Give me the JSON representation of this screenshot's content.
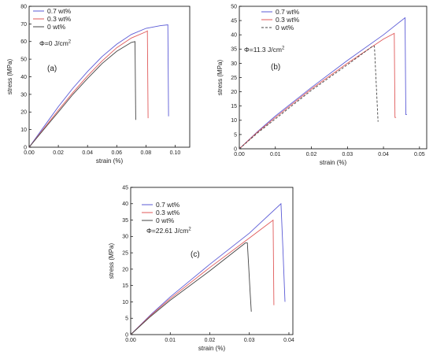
{
  "chart_data": [
    {
      "type": "line",
      "panel": "(a)",
      "annotation": "Φ=0 J/cm",
      "annotation_sup": "2",
      "xlabel": "strain (%)",
      "ylabel": "stress (MPa)",
      "xlim": [
        0,
        0.11
      ],
      "ylim": [
        0,
        80
      ],
      "xticks": [
        0.0,
        0.02,
        0.04,
        0.06,
        0.08,
        0.1
      ],
      "xtick_labels": [
        "0.00",
        "0.02",
        "0.04",
        "0.06",
        "0.08",
        "0.10"
      ],
      "yticks": [
        0,
        10,
        20,
        30,
        40,
        50,
        60,
        70,
        80
      ],
      "ytick_labels": [
        "0",
        "10",
        "20",
        "30",
        "40",
        "50",
        "60",
        "70",
        "80"
      ],
      "legend_position": "top-left",
      "series": [
        {
          "name": "0.7 wt%",
          "color": "#5b5bd6",
          "dash": "none",
          "points": [
            [
              0,
              0
            ],
            [
              0.01,
              11.5
            ],
            [
              0.02,
              23
            ],
            [
              0.03,
              33.5
            ],
            [
              0.04,
              43
            ],
            [
              0.05,
              51.5
            ],
            [
              0.06,
              58.5
            ],
            [
              0.07,
              64
            ],
            [
              0.08,
              67.5
            ],
            [
              0.09,
              69
            ],
            [
              0.095,
              69.5
            ],
            [
              0.0955,
              17.5
            ]
          ]
        },
        {
          "name": "0.3 wt%",
          "color": "#e05a5a",
          "dash": "none",
          "points": [
            [
              0,
              0
            ],
            [
              0.01,
              10.5
            ],
            [
              0.02,
              21
            ],
            [
              0.03,
              31
            ],
            [
              0.04,
              40.5
            ],
            [
              0.05,
              49
            ],
            [
              0.06,
              56.5
            ],
            [
              0.07,
              62
            ],
            [
              0.08,
              65.5
            ],
            [
              0.081,
              66
            ],
            [
              0.0815,
              16.5
            ]
          ]
        },
        {
          "name": "0 wt%",
          "color": "#444444",
          "dash": "none",
          "points": [
            [
              0,
              0
            ],
            [
              0.01,
              10
            ],
            [
              0.02,
              20
            ],
            [
              0.03,
              30
            ],
            [
              0.04,
              39
            ],
            [
              0.05,
              47.5
            ],
            [
              0.06,
              54.5
            ],
            [
              0.07,
              59.5
            ],
            [
              0.0725,
              60
            ],
            [
              0.073,
              15.5
            ]
          ]
        }
      ]
    },
    {
      "type": "line",
      "panel": "(b)",
      "annotation": "Φ=11.3 J/cm",
      "annotation_sup": "2",
      "xlabel": "strain (%)",
      "ylabel": "stress (MPa)",
      "xlim": [
        0,
        0.052
      ],
      "ylim": [
        0,
        50
      ],
      "xticks": [
        0.0,
        0.01,
        0.02,
        0.03,
        0.04,
        0.05
      ],
      "xtick_labels": [
        "0.00",
        "0.01",
        "0.02",
        "0.03",
        "0.04",
        "0.05"
      ],
      "yticks": [
        0,
        5,
        10,
        15,
        20,
        25,
        30,
        35,
        40,
        45,
        50
      ],
      "ytick_labels": [
        "0",
        "5",
        "10",
        "15",
        "20",
        "25",
        "30",
        "35",
        "40",
        "45",
        "50"
      ],
      "legend_position": "top-left",
      "series": [
        {
          "name": "0.7 wt%",
          "color": "#5b5bd6",
          "dash": "none",
          "points": [
            [
              0,
              0
            ],
            [
              0.005,
              6
            ],
            [
              0.01,
              11.5
            ],
            [
              0.02,
              21.5
            ],
            [
              0.03,
              31
            ],
            [
              0.04,
              40
            ],
            [
              0.046,
              46
            ],
            [
              0.0462,
              12
            ],
            [
              0.0465,
              12
            ]
          ]
        },
        {
          "name": "0.3 wt%",
          "color": "#e05a5a",
          "dash": "none",
          "points": [
            [
              0,
              0
            ],
            [
              0.005,
              5.8
            ],
            [
              0.01,
              11
            ],
            [
              0.02,
              21
            ],
            [
              0.03,
              30
            ],
            [
              0.04,
              38.5
            ],
            [
              0.043,
              40.5
            ],
            [
              0.0432,
              11
            ],
            [
              0.0435,
              11
            ]
          ]
        },
        {
          "name": "0 wt%",
          "color": "#444444",
          "dash": "3,2",
          "points": [
            [
              0,
              0
            ],
            [
              0.005,
              5.5
            ],
            [
              0.01,
              10.5
            ],
            [
              0.02,
              20.5
            ],
            [
              0.03,
              29.5
            ],
            [
              0.037,
              36
            ],
            [
              0.0375,
              36
            ],
            [
              0.0385,
              9.5
            ]
          ]
        }
      ]
    },
    {
      "type": "line",
      "panel": "(c)",
      "annotation": "Φ=22.61 J/cm",
      "annotation_sup": "2",
      "xlabel": "strain (%)",
      "ylabel": "stress (MPa)",
      "xlim": [
        0,
        0.041
      ],
      "ylim": [
        0,
        45
      ],
      "xticks": [
        0.0,
        0.01,
        0.02,
        0.03,
        0.04
      ],
      "xtick_labels": [
        "0.00",
        "0.01",
        "0.02",
        "0.03",
        "0.04"
      ],
      "yticks": [
        0,
        5,
        10,
        15,
        20,
        25,
        30,
        35,
        40,
        45
      ],
      "ytick_labels": [
        "0",
        "5",
        "10",
        "15",
        "20",
        "25",
        "30",
        "35",
        "40",
        "45"
      ],
      "legend_position": "top-left",
      "series": [
        {
          "name": "0.7 wt%",
          "color": "#5b5bd6",
          "dash": "none",
          "points": [
            [
              0,
              0
            ],
            [
              0.005,
              6
            ],
            [
              0.01,
              11.5
            ],
            [
              0.02,
              21.5
            ],
            [
              0.03,
              31
            ],
            [
              0.038,
              40
            ],
            [
              0.0385,
              26
            ],
            [
              0.039,
              10
            ]
          ]
        },
        {
          "name": "0.3 wt%",
          "color": "#e05a5a",
          "dash": "none",
          "points": [
            [
              0,
              0
            ],
            [
              0.005,
              5.8
            ],
            [
              0.01,
              11
            ],
            [
              0.02,
              20.5
            ],
            [
              0.03,
              29.5
            ],
            [
              0.036,
              35
            ],
            [
              0.0362,
              9
            ]
          ]
        },
        {
          "name": "0 wt%",
          "color": "#444444",
          "dash": "none",
          "points": [
            [
              0,
              0
            ],
            [
              0.005,
              5.5
            ],
            [
              0.01,
              10.5
            ],
            [
              0.02,
              19.5
            ],
            [
              0.029,
              28
            ],
            [
              0.0295,
              28
            ],
            [
              0.0302,
              13
            ],
            [
              0.0305,
              7
            ]
          ]
        }
      ]
    }
  ]
}
